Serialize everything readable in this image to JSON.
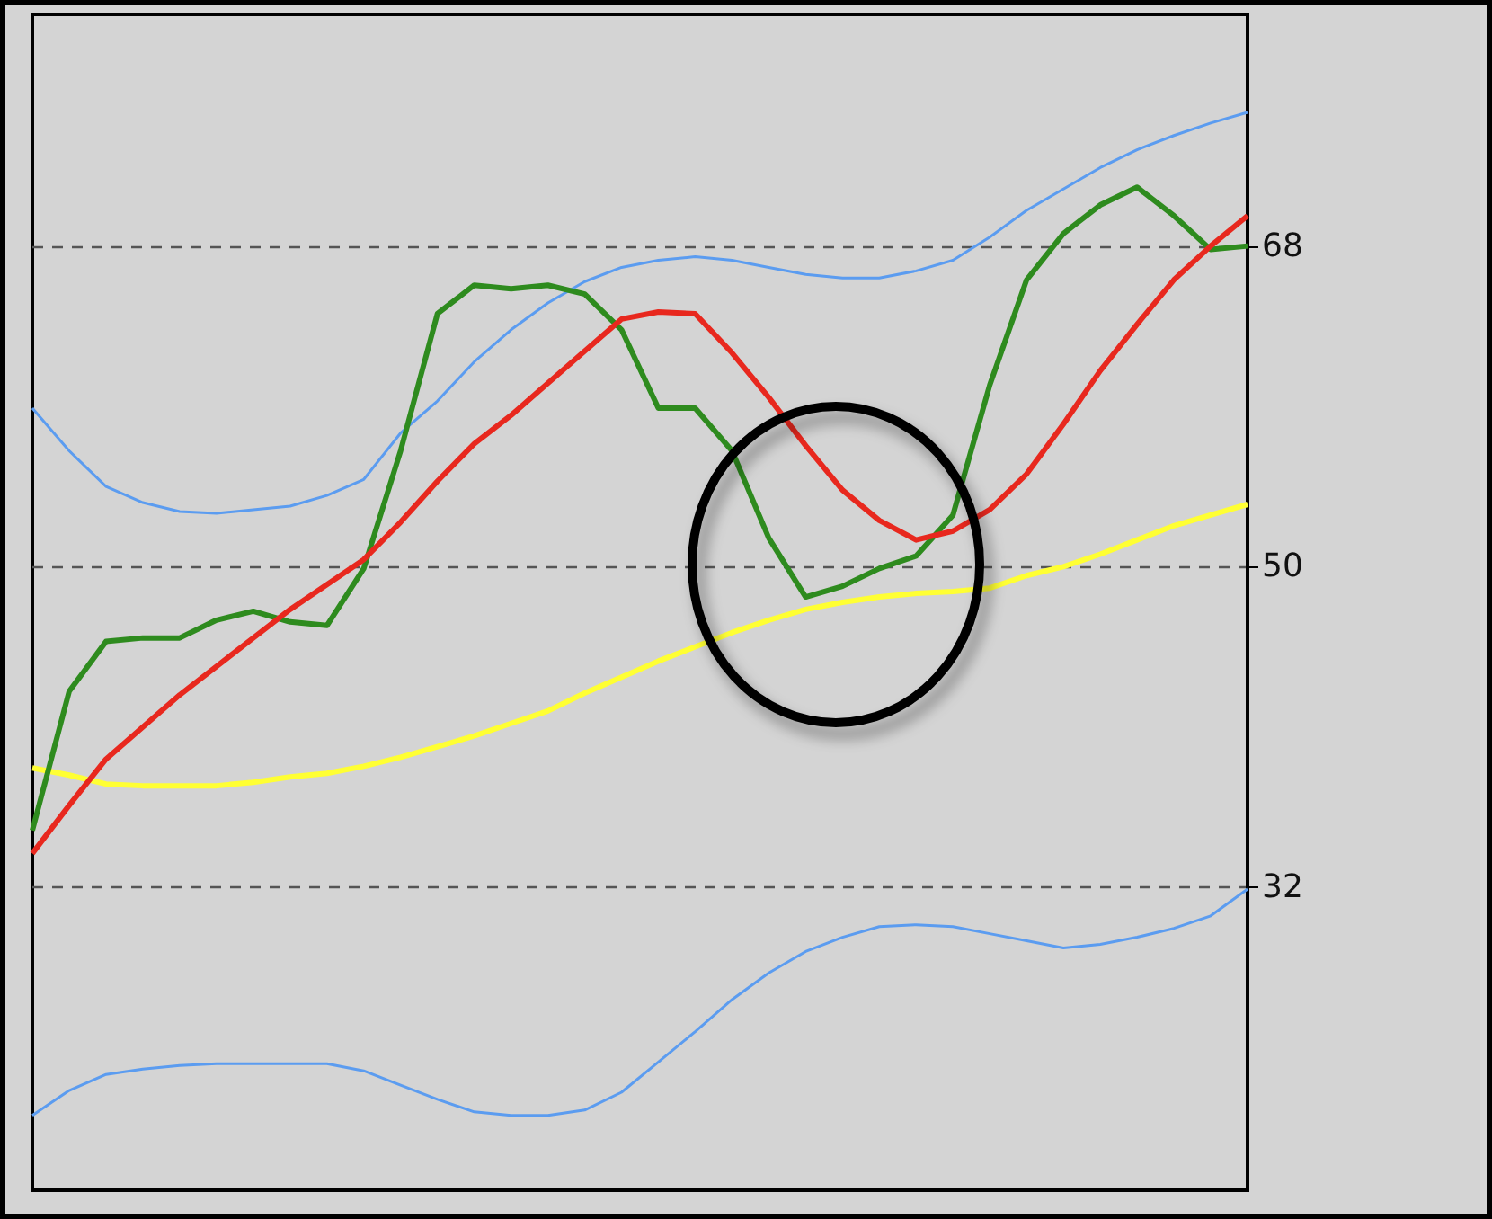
{
  "chart_data": {
    "type": "line",
    "categories": [
      null,
      null,
      null,
      null,
      null,
      null,
      null,
      null,
      null,
      null,
      null,
      null,
      null,
      null,
      null,
      null,
      null,
      null,
      null,
      null,
      null,
      null,
      null,
      null,
      null,
      null,
      null,
      null,
      null,
      null,
      null,
      null,
      null,
      null
    ],
    "series": [
      {
        "color": "#5b9cf0",
        "values": [
          58.9,
          56.5,
          54.5,
          53.6,
          53.1,
          53,
          53.2,
          53.4,
          54,
          54.9,
          57.5,
          59.3,
          61.5,
          63.3,
          64.8,
          66,
          66.8,
          67.2,
          67.4,
          67.2,
          66.8,
          66.4,
          66.2,
          66.2,
          66.6,
          67.2,
          68.5,
          70,
          71.2,
          72.4,
          73.4,
          74.2,
          74.9,
          75.5
        ]
      },
      {
        "color": "#5b9cf0",
        "values": [
          19.2,
          20.6,
          21.5,
          21.8,
          22,
          22.1,
          22.1,
          22.1,
          22.1,
          21.7,
          20.9,
          20.1,
          19.4,
          19.2,
          19.2,
          19.5,
          20.5,
          22.2,
          23.9,
          25.7,
          27.2,
          28.4,
          29.2,
          29.8,
          29.9,
          29.8,
          29.4,
          29,
          28.6,
          28.8,
          29.2,
          29.7,
          30.4,
          31.9
        ]
      },
      {
        "color": "#ffff33",
        "values": [
          38.7,
          38.3,
          37.8,
          37.7,
          37.7,
          37.7,
          37.9,
          38.2,
          38.4,
          38.8,
          39.3,
          39.9,
          40.5,
          41.2,
          41.9,
          42.9,
          43.8,
          44.7,
          45.5,
          46.3,
          47,
          47.6,
          48,
          48.3,
          48.5,
          48.6,
          48.8,
          49.5,
          50,
          50.7,
          51.5,
          52.3,
          52.9,
          53.5
        ]
      },
      {
        "color": "#2e8b1e",
        "values": [
          35.2,
          43,
          45.8,
          46,
          46,
          47,
          47.5,
          46.9,
          46.7,
          49.9,
          56.5,
          64.2,
          65.8,
          65.6,
          65.8,
          65.3,
          63.3,
          58.9,
          58.9,
          56.5,
          51.6,
          48.3,
          48.9,
          49.9,
          50.6,
          52.9,
          60.2,
          66.1,
          68.7,
          70.3,
          71.3,
          69.7,
          67.8,
          68
        ]
      },
      {
        "color": "#e8281e",
        "values": [
          33.9,
          36.6,
          39.2,
          41,
          42.8,
          44.4,
          46,
          47.6,
          49,
          50.4,
          52.5,
          54.8,
          56.9,
          58.5,
          60.3,
          62.1,
          63.9,
          64.3,
          64.2,
          62,
          59.5,
          56.8,
          54.3,
          52.6,
          51.5,
          52,
          53.2,
          55.2,
          58,
          61,
          63.6,
          66.1,
          68,
          69.7
        ]
      }
    ],
    "ylim": [
      15,
      81
    ],
    "yticks": [
      32,
      50,
      68
    ],
    "grid": "y",
    "tick_labels": "y",
    "marker": "none"
  }
}
